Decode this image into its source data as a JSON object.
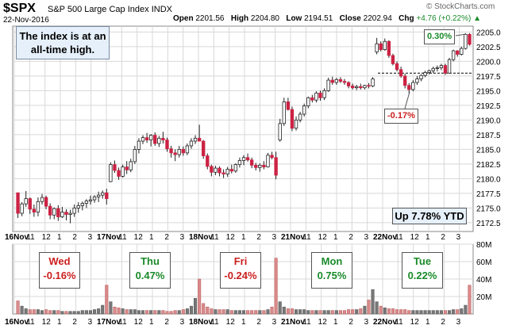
{
  "header": {
    "symbol": "$SPX",
    "name": "S&P 500 Large Cap Index",
    "exchange": "INDX",
    "date": "22-Nov-2016",
    "open_label": "Open",
    "open": "2201.56",
    "high_label": "High",
    "high": "2204.80",
    "low_label": "Low",
    "low": "2194.51",
    "close_label": "Close",
    "close": "2202.94",
    "chg_label": "Chg",
    "chg": "+4.76 (+0.22%)",
    "watermark": "© StockCharts.com"
  },
  "annotations": {
    "note": "The index is at an all-time high.",
    "ytd": "Up 7.78% YTD",
    "pct_high": "0.30%",
    "pct_low": "-0.17%"
  },
  "days": [
    {
      "day": "Wed",
      "change": "-0.16%",
      "color": "red"
    },
    {
      "day": "Thu",
      "change": "0.47%",
      "color": "green"
    },
    {
      "day": "Fri",
      "change": "-0.24%",
      "color": "red"
    },
    {
      "day": "Mon",
      "change": "0.75%",
      "color": "green"
    },
    {
      "day": "Tue",
      "change": "0.22%",
      "color": "green"
    }
  ],
  "colors": {
    "up": "#555555",
    "down": "#cc2244",
    "grid": "#d8d8d8",
    "ref_line": "#000000"
  },
  "chart_data": {
    "type": "candlestick",
    "price_axis": {
      "ticks": [
        2172.5,
        2175.0,
        2177.5,
        2180.0,
        2182.5,
        2185.0,
        2187.5,
        2190.0,
        2192.5,
        2195.0,
        2197.5,
        2200.0,
        2202.5,
        2205.0
      ],
      "range": [
        2171,
        2206
      ]
    },
    "volume_axis": {
      "ticks": [
        "20M",
        "40M",
        "60M",
        "80M"
      ],
      "values": [
        20,
        40,
        60,
        80
      ],
      "range": [
        0,
        80
      ]
    },
    "x_labels": [
      "16Nov",
      "11",
      "12",
      "1",
      "2",
      "3",
      "17Nov",
      "11",
      "12",
      "1",
      "2",
      "3",
      "18Nov",
      "11",
      "12",
      "1",
      "2",
      "3",
      "21Nov",
      "11",
      "12",
      "1",
      "2",
      "3",
      "22Nov",
      "11",
      "12",
      "1",
      "2",
      "3"
    ],
    "reference_line": 2198.0,
    "candles": [
      [
        2177.6,
        2177.6,
        2173.3,
        2174.1
      ],
      [
        2174.1,
        2176.0,
        2173.6,
        2175.7
      ],
      [
        2175.7,
        2177.9,
        2175.2,
        2176.6
      ],
      [
        2176.6,
        2176.8,
        2174.0,
        2174.8
      ],
      [
        2174.8,
        2175.6,
        2173.5,
        2174.3
      ],
      [
        2174.3,
        2176.8,
        2173.6,
        2176.1
      ],
      [
        2176.1,
        2177.4,
        2175.6,
        2176.8
      ],
      [
        2176.8,
        2177.1,
        2174.8,
        2175.3
      ],
      [
        2175.3,
        2175.8,
        2173.1,
        2173.8
      ],
      [
        2173.8,
        2175.1,
        2173.1,
        2174.9
      ],
      [
        2174.9,
        2175.5,
        2172.8,
        2173.5
      ],
      [
        2173.5,
        2175.2,
        2173.3,
        2174.3
      ],
      [
        2174.3,
        2174.8,
        2172.9,
        2173.9
      ],
      [
        2173.9,
        2174.7,
        2172.4,
        2174.1
      ],
      [
        2174.1,
        2175.6,
        2173.5,
        2175.0
      ],
      [
        2175.0,
        2176.0,
        2174.2,
        2175.4
      ],
      [
        2175.4,
        2176.1,
        2174.6,
        2175.8
      ],
      [
        2175.8,
        2176.5,
        2175.0,
        2176.2
      ],
      [
        2176.2,
        2177.1,
        2175.6,
        2176.4
      ],
      [
        2176.4,
        2177.2,
        2175.9,
        2176.9
      ],
      [
        2176.9,
        2177.8,
        2176.0,
        2177.2
      ],
      [
        2177.2,
        2178.0,
        2176.6,
        2177.6
      ],
      [
        2177.6,
        2178.3,
        2175.6,
        2176.6
      ],
      [
        2179.5,
        2182.8,
        2179.4,
        2182.4
      ],
      [
        2182.4,
        2183.1,
        2181.0,
        2181.4
      ],
      [
        2181.4,
        2181.9,
        2179.8,
        2180.4
      ],
      [
        2180.4,
        2182.4,
        2180.2,
        2182.0
      ],
      [
        2182.0,
        2183.0,
        2180.8,
        2181.5
      ],
      [
        2181.5,
        2183.4,
        2181.1,
        2182.9
      ],
      [
        2182.9,
        2185.6,
        2182.5,
        2185.0
      ],
      [
        2185.0,
        2186.9,
        2184.3,
        2186.4
      ],
      [
        2186.4,
        2187.4,
        2185.9,
        2187.0
      ],
      [
        2187.0,
        2187.8,
        2186.1,
        2186.6
      ],
      [
        2186.6,
        2187.6,
        2185.5,
        2187.4
      ],
      [
        2187.4,
        2187.9,
        2185.6,
        2186.0
      ],
      [
        2186.0,
        2187.3,
        2185.4,
        2186.9
      ],
      [
        2186.9,
        2188.0,
        2186.0,
        2186.6
      ],
      [
        2186.6,
        2187.0,
        2184.6,
        2185.1
      ],
      [
        2185.1,
        2185.6,
        2183.6,
        2184.4
      ],
      [
        2184.4,
        2185.0,
        2183.0,
        2184.1
      ],
      [
        2184.1,
        2185.6,
        2183.6,
        2185.0
      ],
      [
        2185.0,
        2185.5,
        2183.9,
        2184.4
      ],
      [
        2184.4,
        2186.0,
        2184.0,
        2185.6
      ],
      [
        2185.6,
        2186.9,
        2185.1,
        2186.4
      ],
      [
        2186.4,
        2187.4,
        2185.9,
        2186.9
      ],
      [
        2186.9,
        2189.2,
        2186.4,
        2186.4
      ],
      [
        2186.4,
        2186.6,
        2183.4,
        2183.9
      ],
      [
        2183.9,
        2184.3,
        2181.6,
        2182.1
      ],
      [
        2182.1,
        2182.4,
        2180.4,
        2181.1
      ],
      [
        2181.1,
        2182.2,
        2180.6,
        2181.8
      ],
      [
        2181.8,
        2182.1,
        2180.4,
        2181.0
      ],
      [
        2181.0,
        2181.6,
        2180.1,
        2180.8
      ],
      [
        2180.8,
        2182.0,
        2180.3,
        2181.6
      ],
      [
        2181.6,
        2182.4,
        2180.9,
        2181.3
      ],
      [
        2181.3,
        2182.6,
        2181.0,
        2182.4
      ],
      [
        2182.4,
        2183.6,
        2181.9,
        2183.1
      ],
      [
        2183.1,
        2184.0,
        2182.3,
        2183.6
      ],
      [
        2183.6,
        2184.3,
        2182.9,
        2183.2
      ],
      [
        2183.2,
        2183.6,
        2181.8,
        2182.3
      ],
      [
        2182.3,
        2182.7,
        2181.4,
        2181.9
      ],
      [
        2181.9,
        2182.6,
        2181.2,
        2182.3
      ],
      [
        2182.3,
        2183.0,
        2181.6,
        2182.0
      ],
      [
        2182.0,
        2184.4,
        2181.9,
        2184.0
      ],
      [
        2184.0,
        2184.6,
        2183.3,
        2183.6
      ],
      [
        2183.6,
        2184.6,
        2179.9,
        2180.6
      ],
      [
        2186.6,
        2190.2,
        2186.3,
        2189.4
      ],
      [
        2189.4,
        2193.8,
        2189.0,
        2193.1
      ],
      [
        2193.1,
        2193.8,
        2191.6,
        2191.8
      ],
      [
        2191.8,
        2192.3,
        2188.1,
        2188.6
      ],
      [
        2188.6,
        2190.6,
        2188.2,
        2190.0
      ],
      [
        2190.0,
        2191.4,
        2189.6,
        2191.0
      ],
      [
        2191.0,
        2192.8,
        2190.6,
        2192.4
      ],
      [
        2192.4,
        2194.0,
        2192.0,
        2193.8
      ],
      [
        2193.8,
        2194.3,
        2193.0,
        2193.4
      ],
      [
        2193.4,
        2194.9,
        2193.0,
        2194.6
      ],
      [
        2194.6,
        2195.0,
        2193.3,
        2193.8
      ],
      [
        2193.8,
        2195.4,
        2193.4,
        2195.0
      ],
      [
        2195.0,
        2197.2,
        2194.8,
        2196.8
      ],
      [
        2196.8,
        2197.4,
        2196.0,
        2196.4
      ],
      [
        2196.4,
        2197.2,
        2196.0,
        2196.9
      ],
      [
        2196.9,
        2197.3,
        2196.3,
        2196.6
      ],
      [
        2196.6,
        2197.0,
        2196.0,
        2196.4
      ],
      [
        2196.4,
        2196.6,
        2195.4,
        2195.8
      ],
      [
        2195.8,
        2196.2,
        2195.2,
        2195.5
      ],
      [
        2195.5,
        2196.0,
        2195.1,
        2195.7
      ],
      [
        2195.7,
        2196.2,
        2195.2,
        2195.5
      ],
      [
        2195.5,
        2196.0,
        2195.2,
        2195.9
      ],
      [
        2195.9,
        2196.3,
        2195.4,
        2195.8
      ],
      [
        2195.8,
        2197.3,
        2195.6,
        2197.0
      ],
      [
        2201.6,
        2204.0,
        2201.2,
        2203.0
      ],
      [
        2203.0,
        2203.4,
        2201.7,
        2202.0
      ],
      [
        2202.0,
        2203.9,
        2201.8,
        2203.4
      ],
      [
        2203.4,
        2203.6,
        2200.6,
        2201.0
      ],
      [
        2201.0,
        2201.3,
        2199.3,
        2199.6
      ],
      [
        2199.6,
        2200.0,
        2198.3,
        2198.6
      ],
      [
        2198.6,
        2199.1,
        2197.2,
        2197.5
      ],
      [
        2197.5,
        2197.9,
        2195.4,
        2195.9
      ],
      [
        2195.9,
        2196.3,
        2194.5,
        2195.2
      ],
      [
        2195.2,
        2196.8,
        2194.9,
        2196.4
      ],
      [
        2196.4,
        2197.5,
        2196.0,
        2197.0
      ],
      [
        2197.0,
        2197.8,
        2196.6,
        2197.6
      ],
      [
        2197.6,
        2198.4,
        2197.3,
        2198.1
      ],
      [
        2198.1,
        2198.6,
        2197.8,
        2198.4
      ],
      [
        2198.4,
        2199.1,
        2198.0,
        2198.8
      ],
      [
        2198.8,
        2199.3,
        2198.3,
        2198.9
      ],
      [
        2198.9,
        2199.6,
        2198.5,
        2199.3
      ],
      [
        2199.3,
        2199.6,
        2197.7,
        2198.0
      ],
      [
        2198.0,
        2200.6,
        2197.9,
        2200.3
      ],
      [
        2200.3,
        2202.0,
        2200.0,
        2201.8
      ],
      [
        2201.8,
        2201.9,
        2200.8,
        2201.2
      ],
      [
        2201.2,
        2202.5,
        2201.0,
        2202.2
      ],
      [
        2202.2,
        2204.8,
        2202.0,
        2204.6
      ],
      [
        2204.6,
        2204.8,
        2202.7,
        2202.9
      ]
    ],
    "volumes": [
      15,
      9,
      6,
      5,
      5,
      5,
      4,
      5,
      4,
      4,
      4,
      3,
      3,
      3,
      3,
      3,
      4,
      4,
      4,
      5,
      6,
      10,
      33,
      14,
      8,
      7,
      6,
      5,
      5,
      5,
      4,
      4,
      4,
      4,
      4,
      4,
      4,
      3,
      3,
      4,
      4,
      5,
      6,
      9,
      18,
      40,
      12,
      8,
      6,
      5,
      5,
      5,
      5,
      4,
      4,
      4,
      4,
      4,
      4,
      4,
      4,
      4,
      5,
      8,
      64,
      14,
      8,
      6,
      6,
      5,
      5,
      5,
      4,
      4,
      4,
      4,
      4,
      4,
      4,
      4,
      4,
      4,
      5,
      5,
      5,
      6,
      9,
      16,
      28,
      14,
      9,
      7,
      6,
      6,
      5,
      5,
      5,
      4,
      4,
      4,
      4,
      4,
      4,
      4,
      4,
      4,
      4,
      4,
      5,
      5,
      6,
      10,
      33
    ]
  }
}
